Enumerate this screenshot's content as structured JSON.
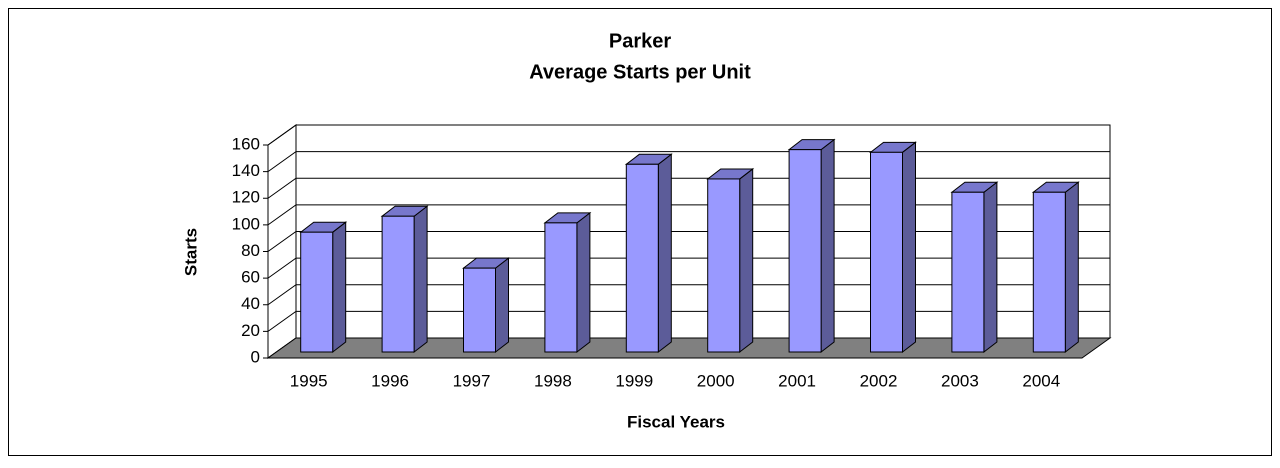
{
  "chart_data": {
    "type": "bar3d",
    "title": "Parker",
    "subtitle": "Average Starts per Unit",
    "x_label": "Fiscal Years",
    "y_label": "Starts",
    "categories": [
      "1995",
      "1996",
      "1997",
      "1998",
      "1999",
      "2000",
      "2001",
      "2002",
      "2003",
      "2004"
    ],
    "values": [
      90,
      102,
      63,
      97,
      141,
      130,
      152,
      150,
      120,
      120
    ],
    "color": "#9999ff",
    "ylim": [
      0,
      160
    ],
    "yticks": [
      0,
      20,
      40,
      60,
      80,
      100,
      120,
      140,
      160
    ],
    "grid": true
  }
}
